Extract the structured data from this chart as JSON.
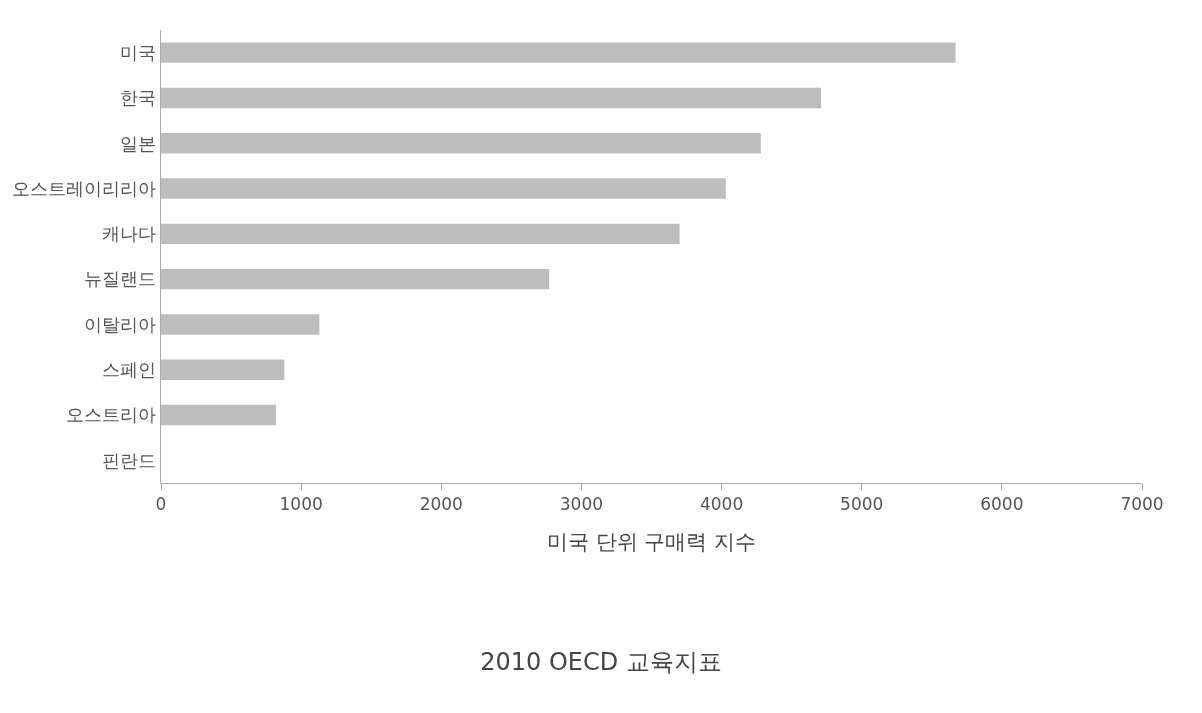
{
  "chart_data": {
    "type": "bar",
    "orientation": "horizontal",
    "title": "2010 OECD 교육지표",
    "xlabel": "미국 단위 구매력 지수",
    "categories": [
      "미국",
      "한국",
      "일본",
      "오스트레이리리아",
      "캐나다",
      "뉴질랜드",
      "이탈리아",
      "스페인",
      "오스트리아",
      "핀란드"
    ],
    "values": [
      5670,
      4710,
      4280,
      4030,
      3700,
      2770,
      1130,
      880,
      820,
      0
    ],
    "color": "#bdbdbd",
    "xlim": [
      0,
      7000
    ],
    "xticks": [
      0,
      1000,
      2000,
      3000,
      4000,
      5000,
      6000,
      7000
    ]
  }
}
